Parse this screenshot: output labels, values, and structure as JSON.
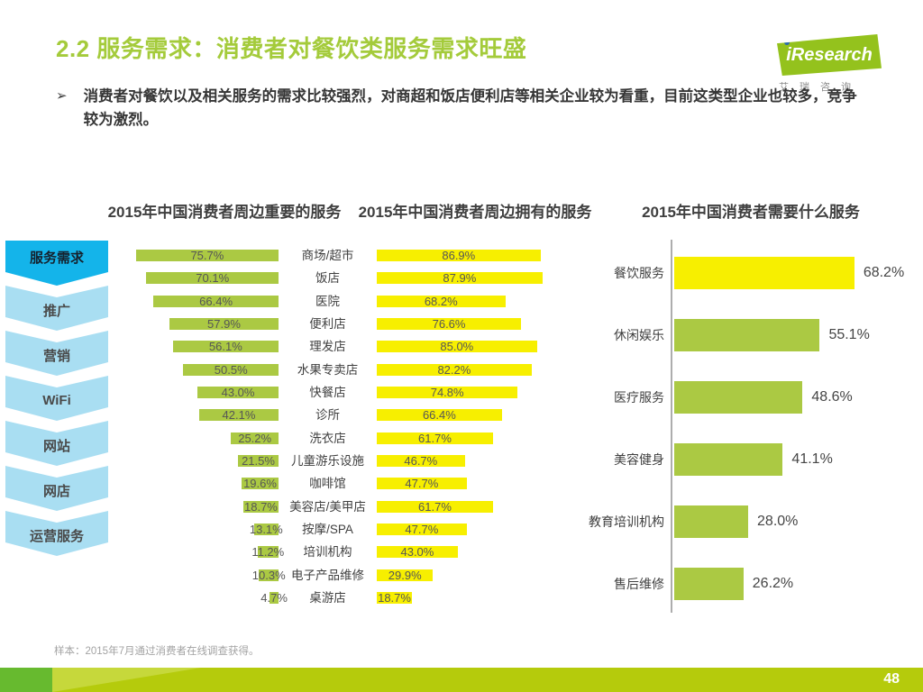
{
  "header": {
    "title": "2.2 服务需求：消费者对餐饮类服务需求旺盛"
  },
  "logo": {
    "i": "i",
    "brand": "Research",
    "caption": "艾瑞咨询"
  },
  "bullet": {
    "marker": "➢",
    "text": "消费者对餐饮以及相关服务的需求比较强烈，对商超和饭店便利店等相关企业较为看重，目前这类型企业也较多，竞争较为激烈。"
  },
  "sidebar": {
    "items": [
      {
        "label": "服务需求",
        "active": true
      },
      {
        "label": "推广",
        "active": false
      },
      {
        "label": "营销",
        "active": false
      },
      {
        "label": "WiFi",
        "active": false
      },
      {
        "label": "网站",
        "active": false
      },
      {
        "label": "网店",
        "active": false
      },
      {
        "label": "运营服务",
        "active": false
      }
    ]
  },
  "chart_data": [
    {
      "type": "bar",
      "title": "2015年中国消费者周边重要的服务",
      "orientation": "horizontal",
      "direction": "right-to-left",
      "unit": "%",
      "bar_color": "#abc943",
      "categories": [
        "商场/超市",
        "饭店",
        "医院",
        "便利店",
        "理发店",
        "水果专卖店",
        "快餐店",
        "诊所",
        "洗衣店",
        "儿童游乐设施",
        "咖啡馆",
        "美容店/美甲店",
        "按摩/SPA",
        "培训机构",
        "电子产品维修",
        "桌游店"
      ],
      "values": [
        75.7,
        70.1,
        66.4,
        57.9,
        56.1,
        50.5,
        43.0,
        42.1,
        25.2,
        21.5,
        19.6,
        18.7,
        13.1,
        11.2,
        10.3,
        4.7
      ]
    },
    {
      "type": "bar",
      "title": "2015年中国消费者周边拥有的服务",
      "orientation": "horizontal",
      "direction": "left-to-right",
      "unit": "%",
      "bar_color": "#f7ef00",
      "categories": [
        "商场/超市",
        "饭店",
        "医院",
        "便利店",
        "理发店",
        "水果专卖店",
        "快餐店",
        "诊所",
        "洗衣店",
        "儿童游乐设施",
        "咖啡馆",
        "美容店/美甲店",
        "按摩/SPA",
        "培训机构",
        "电子产品维修",
        "桌游店"
      ],
      "values": [
        86.9,
        87.9,
        68.2,
        76.6,
        85.0,
        82.2,
        74.8,
        66.4,
        61.7,
        46.7,
        47.7,
        61.7,
        47.7,
        43.0,
        29.9,
        18.7
      ]
    },
    {
      "type": "bar",
      "title": "2015年中国消费者需要什么服务",
      "orientation": "horizontal",
      "direction": "left-to-right",
      "unit": "%",
      "axis": "left-vertical-line",
      "categories": [
        "餐饮服务",
        "休闲娱乐",
        "医疗服务",
        "美容健身",
        "教育培训机构",
        "售后维修"
      ],
      "values": [
        68.2,
        55.1,
        48.6,
        41.1,
        28.0,
        26.2
      ],
      "bar_colors": [
        "#f7ef00",
        "#abc943",
        "#abc943",
        "#abc943",
        "#abc943",
        "#abc943"
      ]
    }
  ],
  "footer": {
    "note": "样本：2015年7月通过消费者在线调查获得。",
    "page_number": "48"
  },
  "colors": {
    "title_green": "#a4cb3b",
    "bar_green": "#abc943",
    "bar_yellow": "#f7ef00",
    "sidebar_active": "#14b4ea",
    "sidebar_inactive": "#a9def2",
    "footer_bar": "#b5cb0c",
    "footer_block_green": "#67ba2f",
    "logo_green": "#94c21d"
  }
}
